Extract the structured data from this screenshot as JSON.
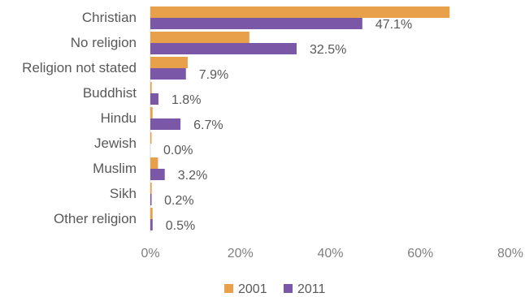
{
  "chart_data": {
    "type": "bar",
    "orientation": "horizontal",
    "categories": [
      "Christian",
      "No religion",
      "Religion not stated",
      "Buddhist",
      "Hindu",
      "Jewish",
      "Muslim",
      "Sikh",
      "Other religion"
    ],
    "series": [
      {
        "name": "2001",
        "color": "#e8a04a",
        "values": [
          66.5,
          22.0,
          8.3,
          0.3,
          0.5,
          0.1,
          1.7,
          0.3,
          0.5
        ]
      },
      {
        "name": "2011",
        "color": "#7b57a8",
        "values": [
          47.1,
          32.5,
          7.9,
          1.8,
          6.7,
          0.0,
          3.2,
          0.2,
          0.5
        ]
      }
    ],
    "data_labels_2011": [
      "47.1%",
      "32.5%",
      "7.9%",
      "1.8%",
      "6.7%",
      "0.0%",
      "3.2%",
      "0.2%",
      "0.5%"
    ],
    "x_ticks": [
      "0%",
      "20%",
      "40%",
      "60%",
      "80%"
    ],
    "xlim": [
      0,
      80
    ],
    "grid": false,
    "legend_position": "bottom",
    "title": "",
    "xlabel": "",
    "ylabel": ""
  }
}
